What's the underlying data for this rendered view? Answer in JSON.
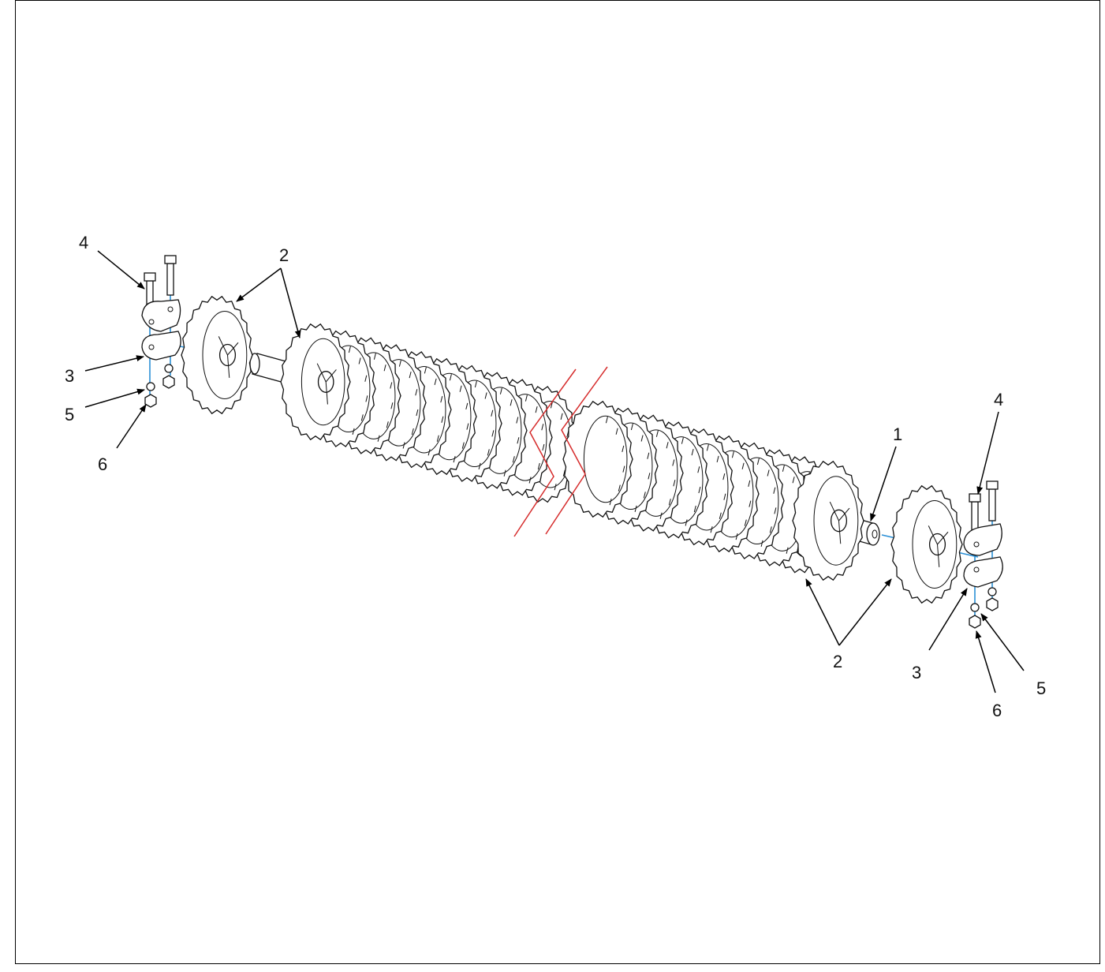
{
  "diagram": {
    "callouts": {
      "c1": "1",
      "c2_left": "2",
      "c2_right": "2",
      "c3_left": "3",
      "c3_right": "3",
      "c4_left": "4",
      "c4_right": "4",
      "c5_left": "5",
      "c5_right": "5",
      "c6_left": "6",
      "c6_right": "6"
    },
    "colors": {
      "line": "#111111",
      "assembly_axis": "#2a8fd6",
      "break_line": "#d62d2d",
      "background": "#ffffff"
    }
  }
}
